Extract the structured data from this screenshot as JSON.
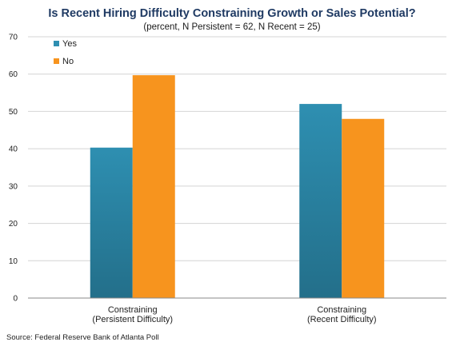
{
  "chart_data": {
    "type": "bar",
    "title": "Is Recent Hiring Difficulty Constraining Growth or Sales Potential?",
    "subtitle": "(percent, N Persistent = 62, N Recent = 25)",
    "categories": [
      [
        "Constraining",
        "(Persistent Difficulty)"
      ],
      [
        "Constraining",
        "(Recent Difficulty)"
      ]
    ],
    "series": [
      {
        "name": "Yes",
        "values": [
          40.3,
          52.0
        ],
        "color": "#2e8fb1",
        "color_dark": "#236f8a"
      },
      {
        "name": "No",
        "values": [
          59.7,
          48.0
        ],
        "color": "#f7941e"
      }
    ],
    "xlabel": "",
    "ylabel": "",
    "ylim": [
      0,
      70
    ],
    "yticks": [
      0,
      10,
      20,
      30,
      40,
      50,
      60,
      70
    ],
    "grid": true,
    "legend_position": "top-left",
    "source": "Source: Federal Reserve Bank of Atlanta Poll"
  }
}
